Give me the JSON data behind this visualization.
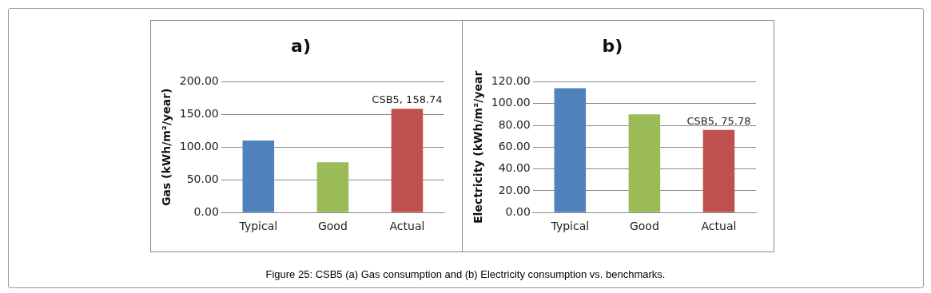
{
  "chart_data": [
    {
      "type": "bar",
      "title": "a)",
      "ylabel": "Gas (kWh/m²/year)",
      "categories": [
        "Typical",
        "Good",
        "Actual"
      ],
      "values": [
        110,
        77,
        158.74
      ],
      "colors": [
        "#4f81bd",
        "#9bbb59",
        "#c0504d"
      ],
      "value_labels": [
        null,
        null,
        "CSB5, 158.74"
      ],
      "ylim": [
        0,
        200
      ],
      "yticks": [
        {
          "value": 0,
          "label": "0.00"
        },
        {
          "value": 50,
          "label": "50.00"
        },
        {
          "value": 100,
          "label": "100.00"
        },
        {
          "value": 150,
          "label": "150.00"
        },
        {
          "value": 200,
          "label": "200.00"
        }
      ],
      "grid": "y",
      "legend": false,
      "annotations": [
        "Figure 25: CSB5 (a) Gas consumption and (b) Electricity consumption vs. benchmarks."
      ]
    },
    {
      "type": "bar",
      "title": "b)",
      "ylabel": "Electricity (kWh/m²/year",
      "categories": [
        "Typical",
        "Good",
        "Actual"
      ],
      "values": [
        114,
        90,
        75.78
      ],
      "colors": [
        "#4f81bd",
        "#9bbb59",
        "#c0504d"
      ],
      "value_labels": [
        null,
        null,
        "CSB5, 75.78"
      ],
      "ylim": [
        0,
        120
      ],
      "yticks": [
        {
          "value": 0,
          "label": "0.00"
        },
        {
          "value": 20,
          "label": "20.00"
        },
        {
          "value": 40,
          "label": "40.00"
        },
        {
          "value": 60,
          "label": "60.00"
        },
        {
          "value": 80,
          "label": "80.00"
        },
        {
          "value": 100,
          "label": "100.00"
        },
        {
          "value": 120,
          "label": "120.00"
        }
      ],
      "grid": "y",
      "legend": false
    }
  ]
}
